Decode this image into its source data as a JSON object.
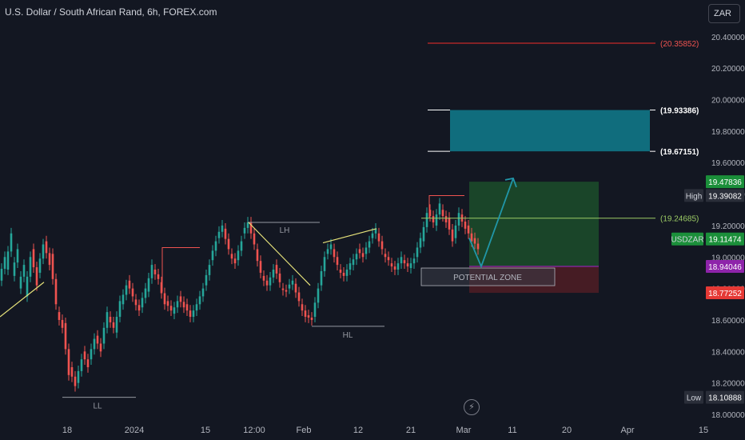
{
  "title": "U.S. Dollar / South African Rand, 6h, FOREX.com",
  "currency_button": "ZAR",
  "colors": {
    "background": "#131722",
    "up": "#26a69a",
    "down": "#ef5350",
    "text": "#b2b5be",
    "target_box": "#106d7d",
    "long_profit": "#1c4a2a",
    "long_stop": "#4c1d25",
    "resistance_line": "#c62828"
  },
  "chart_data": {
    "type": "candlestick",
    "y_axis": {
      "ticks": [
        "20.40000",
        "20.20000",
        "20.00000",
        "19.80000",
        "19.60000",
        "19.40000",
        "19.20000",
        "19.00000",
        "18.80000",
        "18.60000",
        "18.40000",
        "18.20000",
        "18.00000"
      ],
      "ylim": [
        18.0,
        20.45
      ]
    },
    "x_axis": {
      "ticks": [
        "18",
        "2024",
        "15",
        "12:00",
        "Feb",
        "12",
        "21",
        "Mar",
        "11",
        "20",
        "Apr",
        "15"
      ]
    },
    "price_labels": [
      {
        "tag": "",
        "value": "19.47836",
        "color": "#1b8f3a"
      },
      {
        "tag": "High",
        "value": "19.39082",
        "color": "#2a2e39"
      },
      {
        "tag": "USDZAR",
        "value": "19.11474",
        "color": "#1b8f3a"
      },
      {
        "tag": "",
        "value": "18.94046",
        "color": "#8e24aa"
      },
      {
        "tag": "",
        "value": "18.77252",
        "color": "#e53935"
      },
      {
        "tag": "Low",
        "value": "18.10888",
        "color": "#2a2e39"
      }
    ],
    "line_levels": [
      {
        "label": "(20.35852)",
        "value": 20.35852
      },
      {
        "label": "(19.93386)",
        "value": 19.93386
      },
      {
        "label": "(19.67151)",
        "value": 19.67151
      },
      {
        "label": "(19.24685)",
        "value": 19.24685
      }
    ],
    "structure_labels": [
      "LH",
      "HL",
      "LL"
    ],
    "zone_label": "POTENTIAL ZONE",
    "path_points": [
      [
        18.85,
        19.0
      ],
      [
        18.92,
        19.15
      ],
      [
        18.88,
        19.05
      ],
      [
        18.8,
        18.95
      ],
      [
        18.75,
        19.0
      ],
      [
        19.05,
        18.82
      ],
      [
        18.9,
        19.08
      ],
      [
        19.1,
        18.95
      ],
      [
        19.02,
        18.7
      ],
      [
        18.65,
        18.55
      ],
      [
        18.58,
        18.25
      ],
      [
        18.3,
        18.18
      ],
      [
        18.2,
        18.35
      ],
      [
        18.4,
        18.3
      ],
      [
        18.35,
        18.48
      ],
      [
        18.5,
        18.4
      ],
      [
        18.45,
        18.65
      ],
      [
        18.62,
        18.55
      ],
      [
        18.52,
        18.72
      ],
      [
        18.7,
        18.82
      ],
      [
        18.85,
        18.75
      ],
      [
        18.73,
        18.66
      ],
      [
        18.68,
        18.8
      ],
      [
        18.78,
        18.95
      ],
      [
        18.92,
        18.86
      ],
      [
        18.84,
        18.7
      ],
      [
        18.72,
        18.66
      ],
      [
        18.64,
        18.72
      ],
      [
        18.75,
        18.68
      ],
      [
        18.7,
        18.62
      ],
      [
        18.62,
        18.7
      ],
      [
        18.7,
        18.8
      ],
      [
        18.82,
        18.95
      ],
      [
        18.98,
        19.1
      ],
      [
        19.12,
        19.2
      ],
      [
        19.18,
        19.05
      ],
      [
        19.02,
        18.96
      ],
      [
        18.98,
        19.1
      ],
      [
        19.15,
        19.22
      ],
      [
        19.22,
        19.08
      ],
      [
        19.05,
        18.9
      ],
      [
        18.88,
        18.82
      ],
      [
        18.82,
        18.92
      ],
      [
        18.95,
        18.84
      ],
      [
        18.8,
        18.78
      ],
      [
        18.8,
        18.85
      ],
      [
        18.83,
        18.72
      ],
      [
        18.7,
        18.62
      ],
      [
        18.63,
        18.6
      ],
      [
        18.62,
        18.8
      ],
      [
        18.82,
        19.0
      ],
      [
        19.02,
        19.08
      ],
      [
        19.05,
        18.95
      ],
      [
        18.92,
        18.88
      ],
      [
        18.88,
        18.96
      ],
      [
        18.95,
        19.02
      ],
      [
        19.05,
        19.0
      ],
      [
        19.02,
        19.1
      ],
      [
        19.12,
        19.18
      ],
      [
        19.15,
        19.05
      ],
      [
        19.02,
        18.98
      ],
      [
        18.96,
        18.92
      ],
      [
        18.92,
        19.0
      ],
      [
        18.98,
        18.94
      ],
      [
        18.93,
        18.99
      ],
      [
        19.0,
        19.12
      ],
      [
        19.1,
        19.28
      ],
      [
        19.3,
        19.22
      ],
      [
        19.2,
        19.34
      ],
      [
        19.3,
        19.22
      ],
      [
        19.25,
        19.1
      ],
      [
        19.12,
        19.28
      ],
      [
        19.27,
        19.18
      ],
      [
        19.2,
        19.1
      ],
      [
        19.12,
        19.05
      ]
    ],
    "forecast_arrow": {
      "from": 18.94,
      "to": 19.5
    }
  }
}
